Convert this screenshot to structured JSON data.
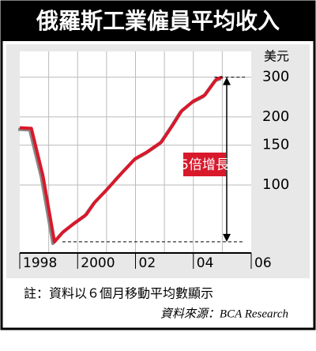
{
  "chart_data": {
    "type": "line",
    "title": "俄羅斯工業僱員平均收入",
    "unit_label": "美元",
    "annotation": "5倍增長",
    "note": "註：資料以６個月移動平均數顯示",
    "source": "資料來源：BCA Research",
    "x": [
      1998.0,
      1998.4,
      1998.8,
      1999.2,
      1999.5,
      1999.9,
      2000.3,
      2000.6,
      2001.0,
      2001.5,
      2002.0,
      2002.4,
      2002.9,
      2003.3,
      2003.6,
      2004.0,
      2004.4,
      2004.8,
      2005.0
    ],
    "series": [
      {
        "name": "收入",
        "color": "#d7192b",
        "values": [
          179,
          178,
          110,
          56,
          62,
          68,
          74,
          84,
          95,
          112,
          131,
          140,
          155,
          185,
          213,
          235,
          250,
          294,
          300
        ]
      }
    ],
    "xlim": [
      1998,
      2006
    ],
    "xticks": [
      {
        "value": 1998,
        "label": "1998"
      },
      {
        "value": 2000,
        "label": "2000"
      },
      {
        "value": 2002,
        "label": "02"
      },
      {
        "value": 2004,
        "label": "04"
      },
      {
        "value": 2006,
        "label": "06"
      }
    ],
    "x_grid": [
      1999,
      2000,
      2001,
      2002,
      2003,
      2004,
      2005
    ],
    "ylim": [
      50,
      390
    ],
    "log_y": true,
    "yticks": [
      100,
      150,
      200,
      300
    ],
    "grid": true
  }
}
